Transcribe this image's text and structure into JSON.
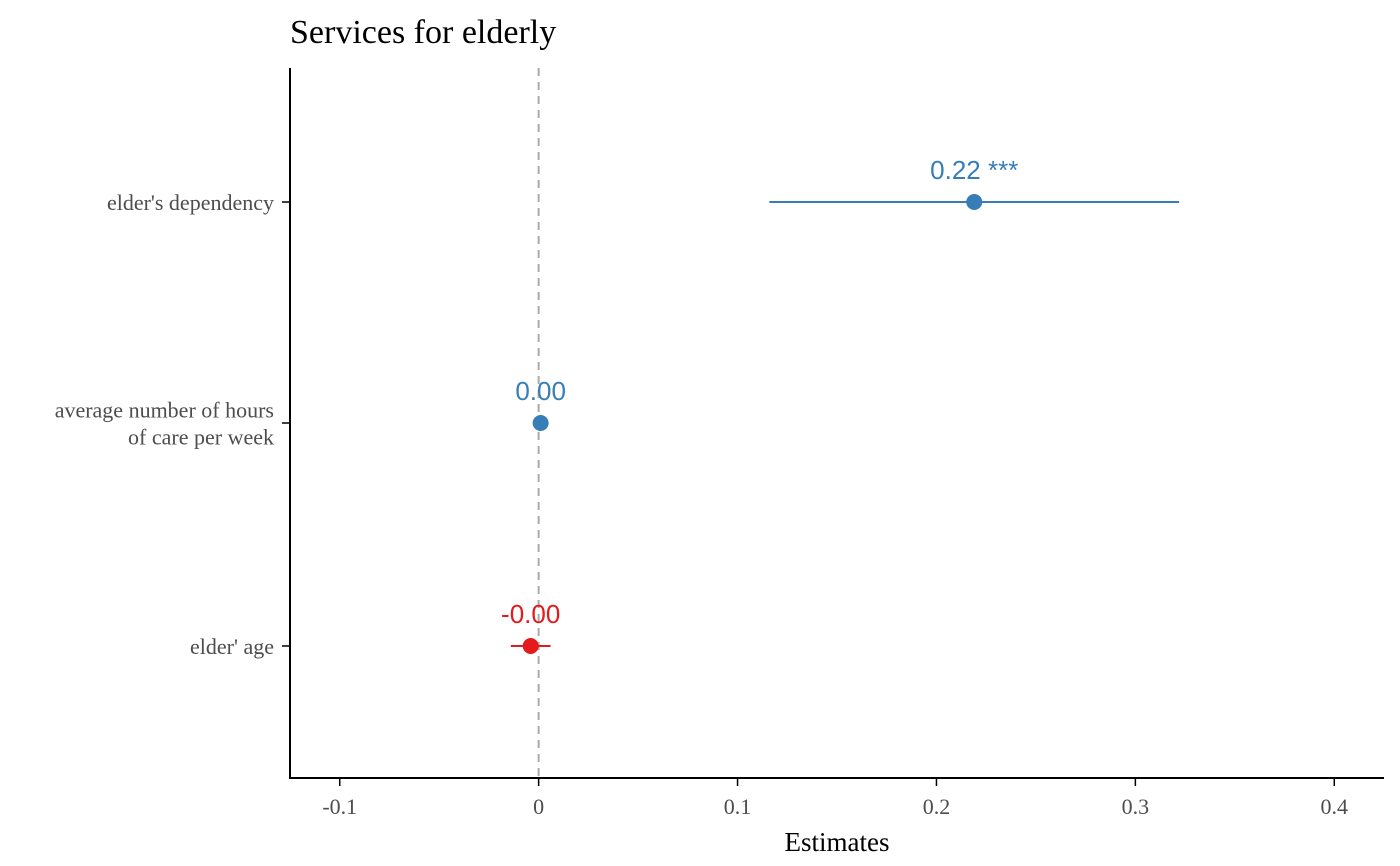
{
  "chart_data": {
    "type": "scatter",
    "subtype": "coefficient-plot",
    "title": "Services for elderly",
    "xlabel": "Estimates",
    "ylabel": "",
    "xlim": [
      -0.125,
      0.425
    ],
    "x_ticks": [
      -0.1,
      0,
      0.1,
      0.2,
      0.3,
      0.4
    ],
    "x_tick_labels": [
      "-0.1",
      "0",
      "0.1",
      "0.2",
      "0.3",
      "0.4"
    ],
    "reference_line": 0,
    "grid": false,
    "legend": "none",
    "colors": {
      "positive": "#377EB8",
      "negative": "#E41A1C",
      "reference": "#AAAAAA",
      "axis": "#000000",
      "tick_text": "#4D4D4D"
    },
    "terms": [
      {
        "label": "elder's dependency",
        "lines": [
          "elder's dependency"
        ],
        "estimate": 0.219,
        "ci_low": 0.116,
        "ci_high": 0.322,
        "value_label": "0.22 ***",
        "sign": "positive"
      },
      {
        "label": "average number of hours of care per week",
        "lines": [
          "average number of hours",
          "of care per week"
        ],
        "estimate": 0.001,
        "ci_low": 0.0005,
        "ci_high": 0.0015,
        "value_label": "0.00",
        "sign": "positive"
      },
      {
        "label": "elder' age",
        "lines": [
          "elder' age"
        ],
        "estimate": -0.004,
        "ci_low": -0.014,
        "ci_high": 0.006,
        "value_label": "-0.00",
        "sign": "negative"
      }
    ]
  }
}
